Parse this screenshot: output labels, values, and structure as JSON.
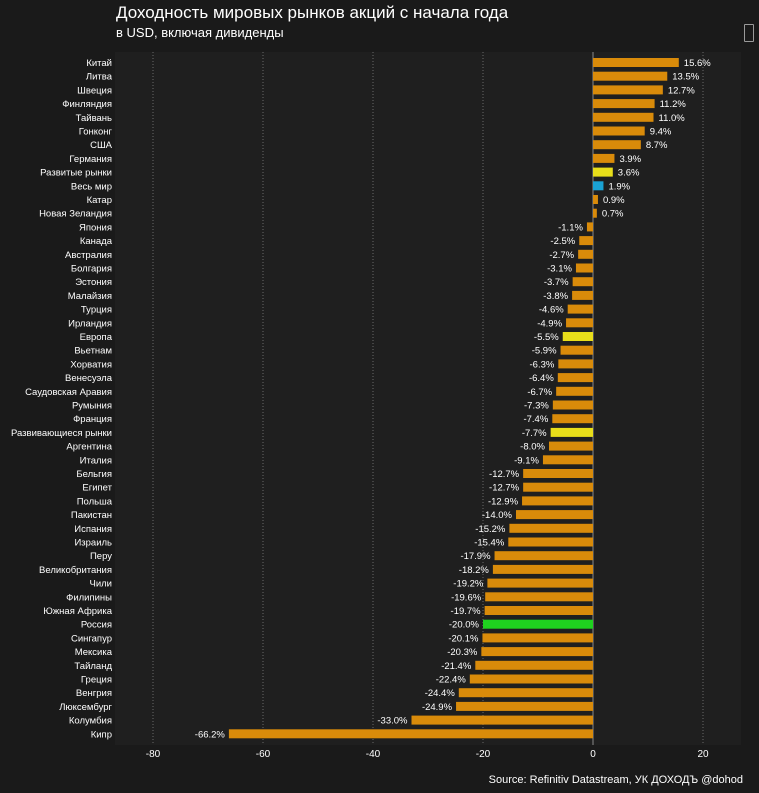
{
  "header": {
    "title": "Доходность мировых рынков акций с начала года",
    "subtitle": "в USD, включая дивиденды"
  },
  "footer": {
    "source": "Source: Refinitiv Datastream, УК ДОХОДЪ @dohod"
  },
  "colors": {
    "background": "#1a1a1a",
    "plot_background": "#1f1f1f",
    "default_bar": "#d98b0a",
    "developed_bar": "#e8de1a",
    "emerging_bar": "#e8de1a",
    "world_bar": "#1aa2d4",
    "russia_bar": "#1fd21f",
    "grid": "#6a6a6a",
    "text": "#ffffff"
  },
  "chart_data": {
    "type": "bar",
    "orientation": "horizontal",
    "title": "Доходность мировых рынков акций с начала года",
    "subtitle": "в USD, включая дивиденды",
    "xlabel": "",
    "ylabel": "",
    "xlim": [
      -87,
      27
    ],
    "xticks": [
      -80,
      -60,
      -40,
      -20,
      0,
      20
    ],
    "grid": "vertical dotted",
    "categories": [
      "Китай",
      "Литва",
      "Швеция",
      "Финляндия",
      "Тайвань",
      "Гонконг",
      "США",
      "Германия",
      "Развитые рынки",
      "Весь мир",
      "Катар",
      "Новая Зеландия",
      "Япония",
      "Канада",
      "Австралия",
      "Болгария",
      "Эстония",
      "Малайзия",
      "Турция",
      "Ирландия",
      "Европа",
      "Вьетнам",
      "Хорватия",
      "Венесуэла",
      "Саудовская Аравия",
      "Румыния",
      "Франция",
      "Развивающиеся рынки",
      "Аргентина",
      "Италия",
      "Бельгия",
      "Египет",
      "Польша",
      "Пакистан",
      "Испания",
      "Израиль",
      "Перу",
      "Великобритания",
      "Чили",
      "Филипины",
      "Южная Африка",
      "Россия",
      "Сингапур",
      "Мексика",
      "Тайланд",
      "Греция",
      "Венгрия",
      "Люксембург",
      "Колумбия",
      "Кипр"
    ],
    "values": [
      15.6,
      13.5,
      12.7,
      11.2,
      11.0,
      9.4,
      8.7,
      3.9,
      3.6,
      1.9,
      0.9,
      0.7,
      -1.1,
      -2.5,
      -2.7,
      -3.1,
      -3.7,
      -3.8,
      -4.6,
      -4.9,
      -5.5,
      -5.9,
      -6.3,
      -6.4,
      -6.7,
      -7.3,
      -7.4,
      -7.7,
      -8.0,
      -9.1,
      -12.7,
      -12.7,
      -12.9,
      -14.0,
      -15.2,
      -15.4,
      -17.9,
      -18.2,
      -19.2,
      -19.6,
      -19.7,
      -20.0,
      -20.1,
      -20.3,
      -21.4,
      -22.4,
      -24.4,
      -24.9,
      -33.0,
      -66.2
    ],
    "data_labels": [
      "15.6%",
      "13.5%",
      "12.7%",
      "11.2%",
      "11.0%",
      "9.4%",
      "8.7%",
      "3.9%",
      "3.6%",
      "1.9%",
      "0.9%",
      "0.7%",
      "-1.1%",
      "-2.5%",
      "-2.7%",
      "-3.1%",
      "-3.7%",
      "-3.8%",
      "-4.6%",
      "-4.9%",
      "-5.5%",
      "-5.9%",
      "-6.3%",
      "-6.4%",
      "-6.7%",
      "-7.3%",
      "-7.4%",
      "-7.7%",
      "-8.0%",
      "-9.1%",
      "-12.7%",
      "-12.7%",
      "-12.9%",
      "-14.0%",
      "-15.2%",
      "-15.4%",
      "-17.9%",
      "-18.2%",
      "-19.2%",
      "-19.6%",
      "-19.7%",
      "-20.0%",
      "-20.1%",
      "-20.3%",
      "-21.4%",
      "-22.4%",
      "-24.4%",
      "-24.9%",
      "-33.0%",
      "-66.2%"
    ],
    "highlights": {
      "Развитые рынки": "developed_bar",
      "Весь мир": "world_bar",
      "Европа": "developed_bar",
      "Развивающиеся рынки": "emerging_bar",
      "Россия": "russia_bar"
    },
    "legend": "none"
  }
}
